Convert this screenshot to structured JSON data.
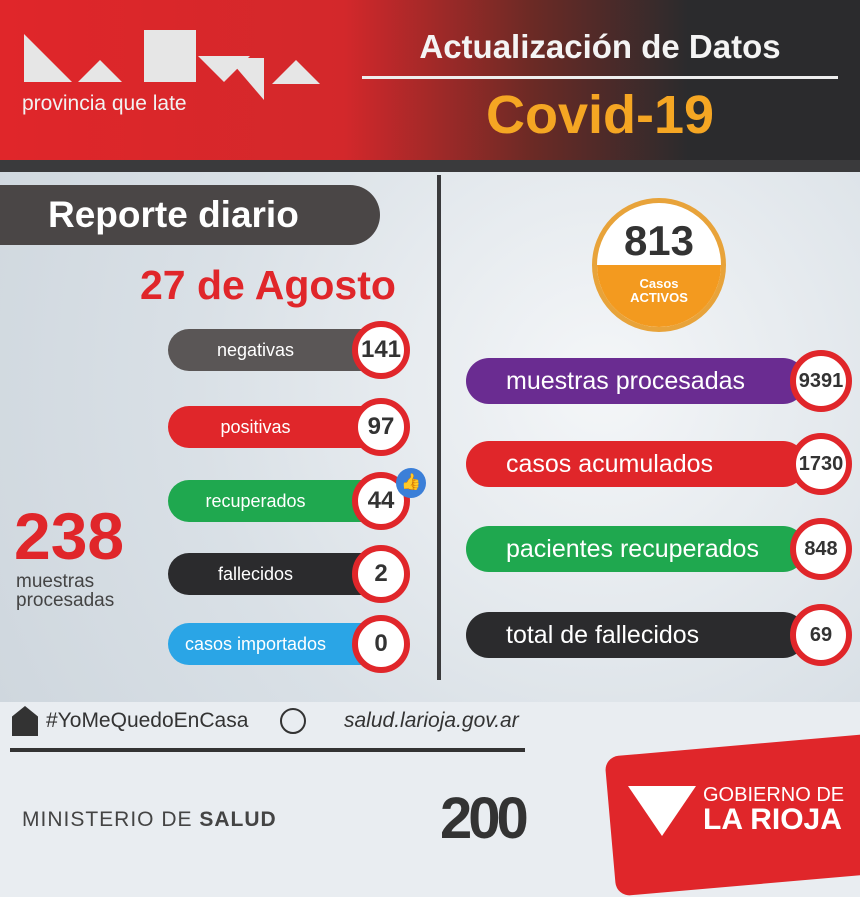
{
  "header": {
    "logo": "La Rioja",
    "tagline": "provincia que late",
    "title": "Actualización de Datos",
    "subtitle": "Covid-19"
  },
  "left": {
    "title": "Reporte diario",
    "date": "27 de Agosto",
    "stats": [
      {
        "label": "negativas",
        "value": "141",
        "color": "#5a5656"
      },
      {
        "label": "positivas",
        "value": "97",
        "color": "#e0262a"
      },
      {
        "label": "recuperados",
        "value": "44",
        "color": "#1fa84f"
      },
      {
        "label": "fallecidos",
        "value": "2",
        "color": "#2b2b2d"
      },
      {
        "label": "casos importados",
        "value": "0",
        "color": "#2aa5e6"
      }
    ],
    "samples_value": "238",
    "samples_label_1": "muestras",
    "samples_label_2": "procesadas"
  },
  "right": {
    "active_value": "813",
    "active_label_1": "Casos",
    "active_label_2": "ACTIVOS",
    "stats": [
      {
        "label": "muestras procesadas",
        "value": "9391",
        "color": "#6a2c91"
      },
      {
        "label": "casos acumulados",
        "value": "1730",
        "color": "#e0262a"
      },
      {
        "label": "pacientes recuperados",
        "value": "848",
        "color": "#1fa84f"
      },
      {
        "label": "total de fallecidos",
        "value": "69",
        "color": "#2b2b2d"
      }
    ]
  },
  "footer": {
    "hashtag": "#YoMeQuedoEnCasa",
    "website": "salud.larioja.gov.ar",
    "ministry_1": "MINISTERIO DE ",
    "ministry_2": "SALUD",
    "anniversary": "200",
    "gov_1": "GOBIERNO DE",
    "gov_2": "LA RIOJA"
  }
}
